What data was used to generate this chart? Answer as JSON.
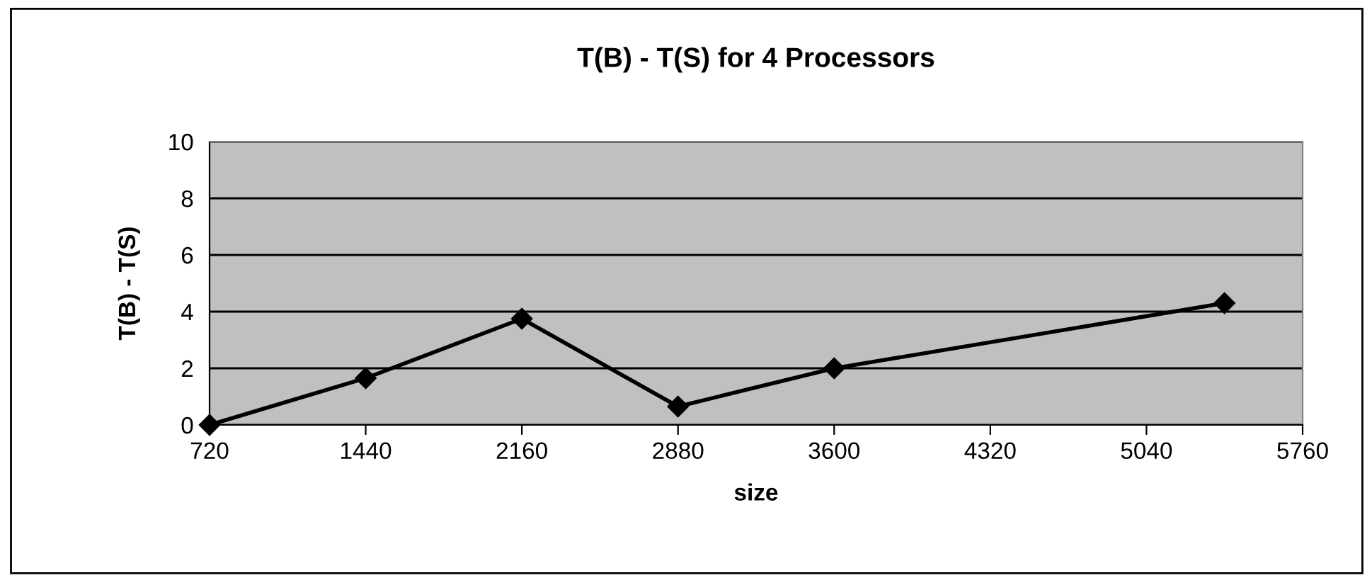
{
  "chart_data": {
    "type": "line",
    "title": "T(B) - T(S) for 4 Processors",
    "xlabel": "size",
    "ylabel": "T(B) - T(S)",
    "x": [
      720,
      1440,
      2160,
      2880,
      3600,
      5400
    ],
    "series": [
      {
        "color": "#000000",
        "values": [
          0,
          1.65,
          3.75,
          0.65,
          2.0,
          4.3
        ]
      }
    ],
    "xlim": [
      720,
      5760
    ],
    "xticks": [
      720,
      1440,
      2160,
      2880,
      3600,
      4320,
      5040,
      5760
    ],
    "ylim": [
      0,
      10
    ],
    "yticks": [
      0,
      2,
      4,
      6,
      8,
      10
    ],
    "grid": "y",
    "legend": false,
    "marker": "diamond",
    "line_style": "solid"
  }
}
